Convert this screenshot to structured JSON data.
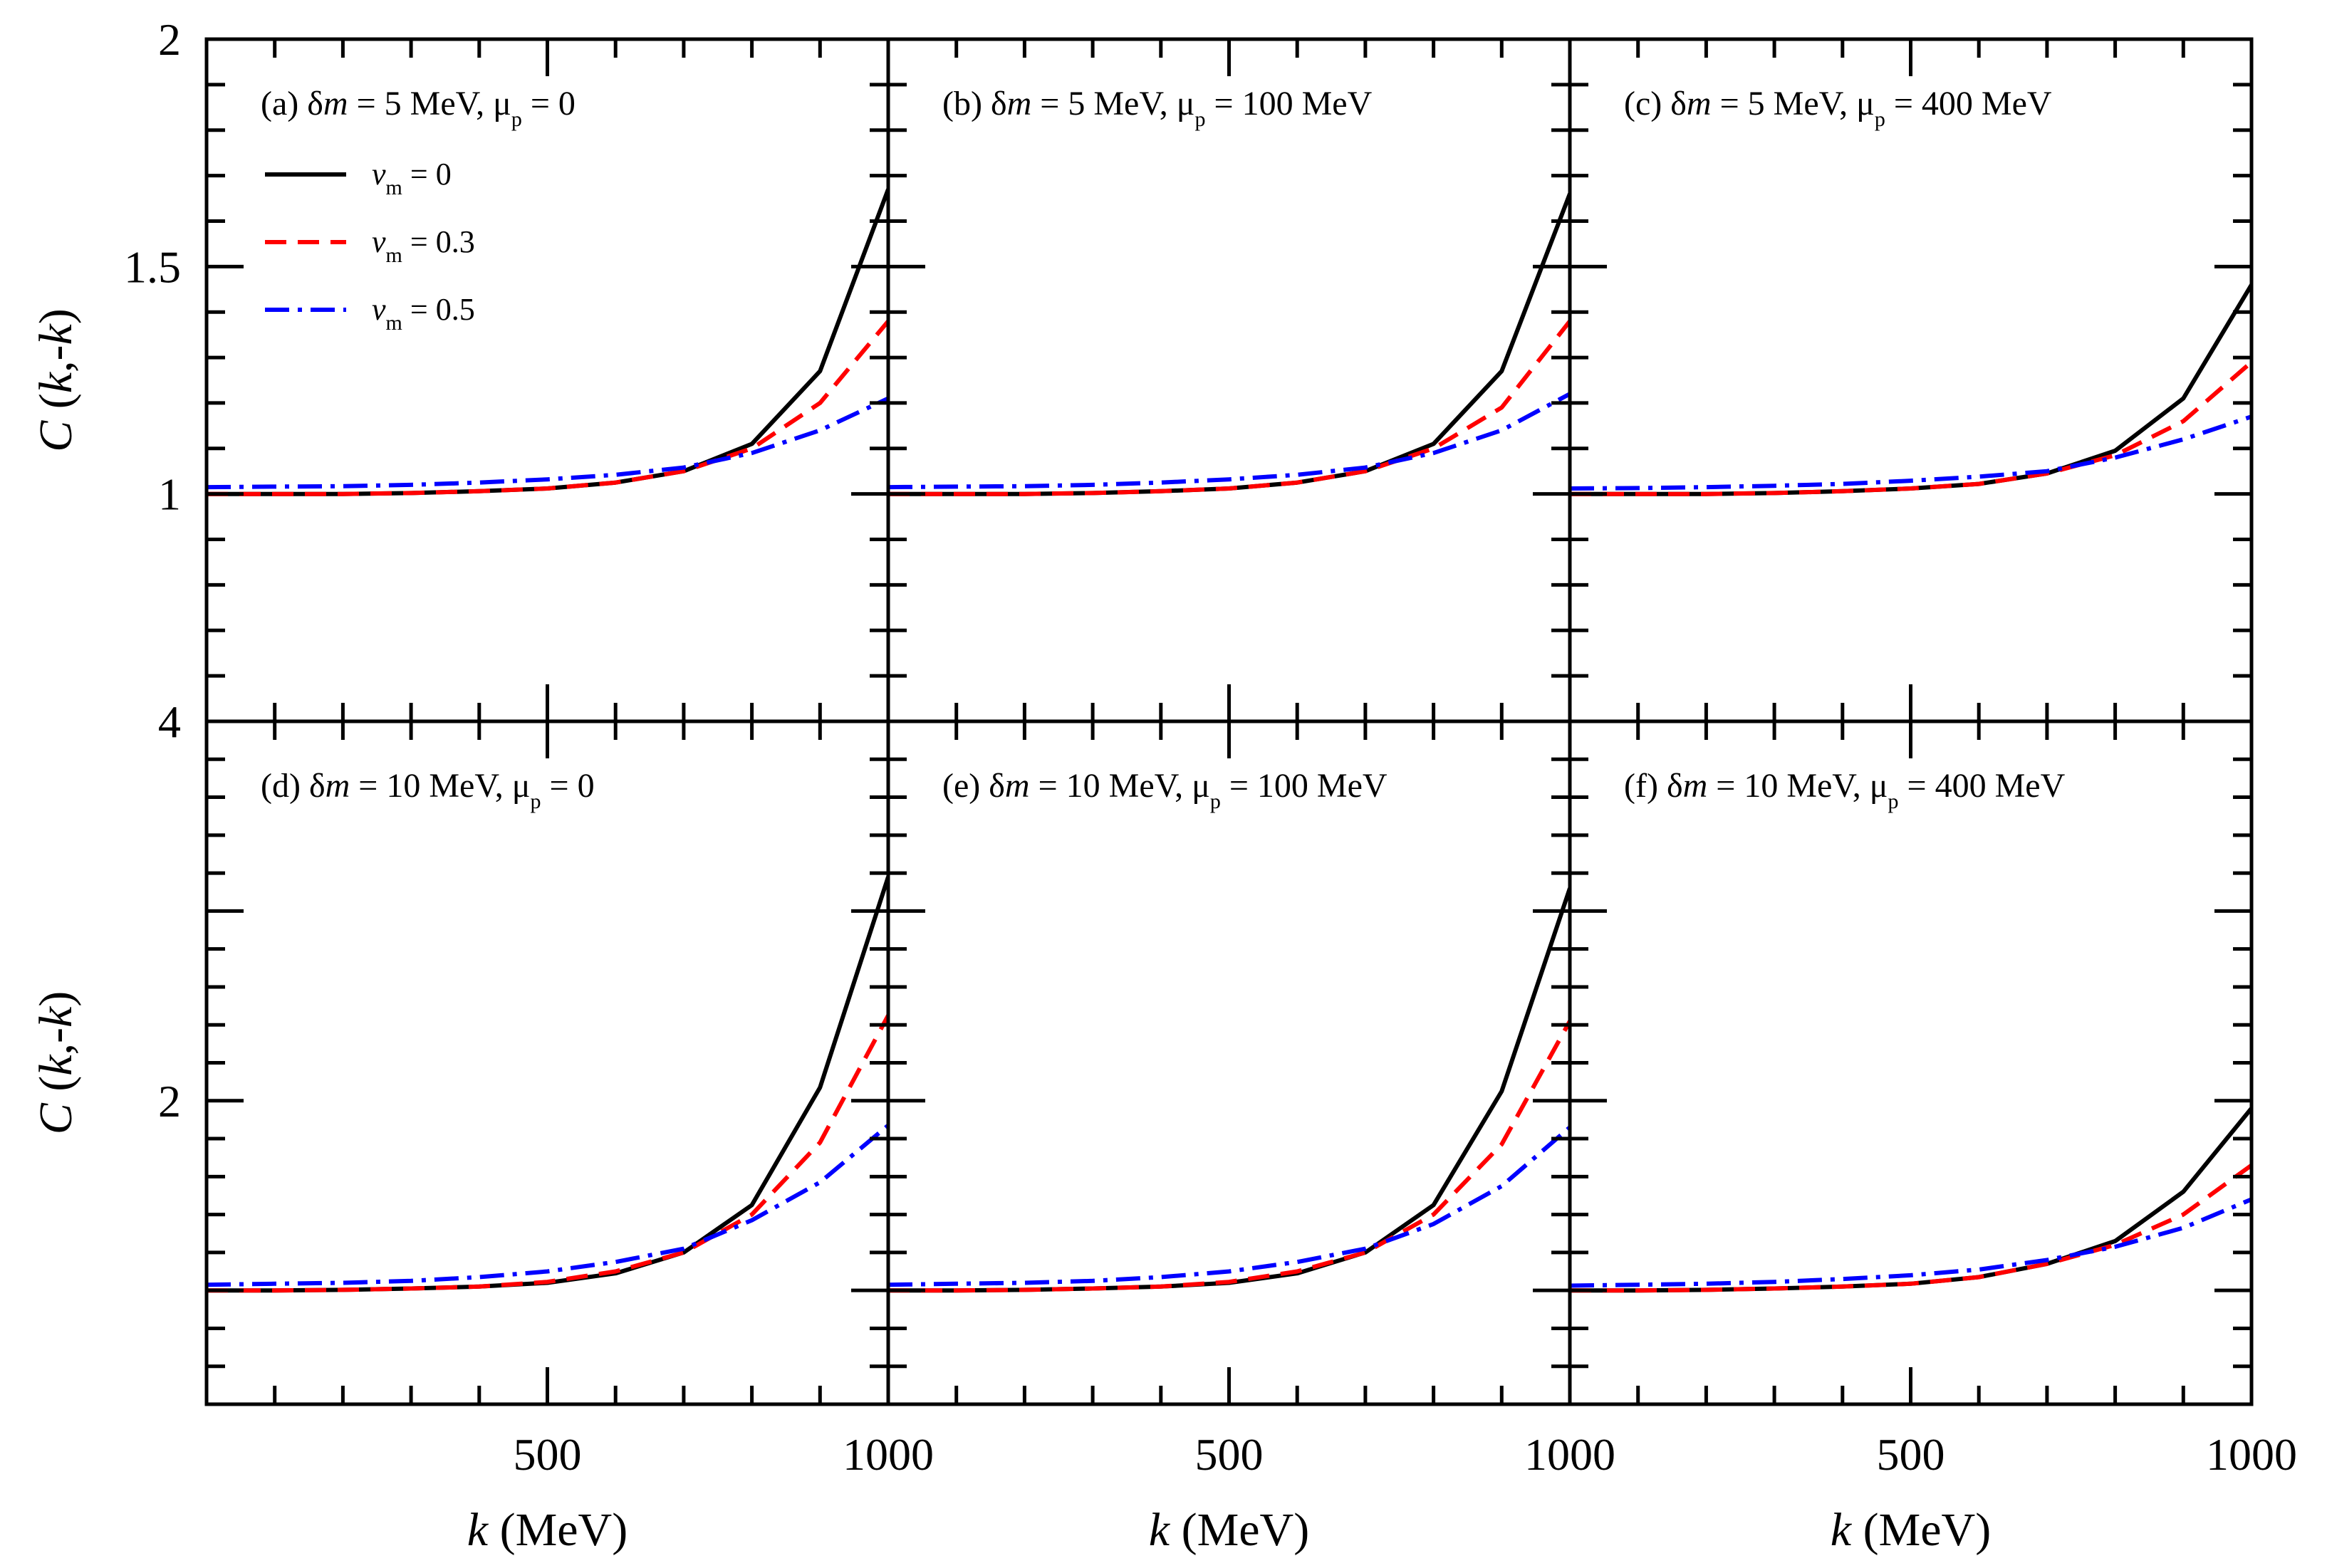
{
  "figure": {
    "ylabel_top": "C (k,-k)",
    "ylabel_bottom": "C (k,-k)",
    "xlabel": "k (MeV)",
    "legend": [
      {
        "var": "v",
        "sub": "m",
        "rest": " = 0",
        "color": "#000000",
        "dash": "solid"
      },
      {
        "var": "v",
        "sub": "m",
        "rest": " = 0.3",
        "color": "#ff0000",
        "dash": "dashed"
      },
      {
        "var": "v",
        "sub": "m",
        "rest": " = 0.5",
        "color": "#0000ff",
        "dash": "dashdot"
      }
    ],
    "top_row_yticks": [
      {
        "value": 1,
        "label": "1"
      },
      {
        "value": 1.5,
        "label": "1.5"
      },
      {
        "value": 2,
        "label": "2"
      }
    ],
    "top_row_extra_label": "4",
    "bottom_row_yticks": [
      {
        "value": 2,
        "label": "2"
      },
      {
        "value": 4,
        "label": "4"
      }
    ],
    "xticks": [
      {
        "value": 500,
        "label": "500"
      },
      {
        "value": 1000,
        "label": "1000"
      }
    ]
  },
  "chart_data": [
    {
      "type": "line",
      "panel": "a",
      "label": "(a) δm = 5 MeV, μp = 0",
      "title_parts": [
        "(a) ",
        "δ",
        "m",
        " = 5 MeV, ",
        "μ",
        "p",
        " = 0"
      ],
      "xlim": [
        0,
        1000
      ],
      "ylim": [
        0.5,
        2
      ],
      "x": [
        0,
        100,
        200,
        300,
        400,
        500,
        600,
        700,
        800,
        900,
        1000
      ],
      "series": [
        {
          "name": "vm = 0",
          "values": [
            1.0,
            1.0,
            1.0,
            1.002,
            1.006,
            1.012,
            1.025,
            1.05,
            1.11,
            1.27,
            1.67
          ]
        },
        {
          "name": "vm = 0.3",
          "values": [
            1.0,
            1.0,
            1.0,
            1.002,
            1.006,
            1.012,
            1.025,
            1.05,
            1.1,
            1.2,
            1.38
          ]
        },
        {
          "name": "vm = 0.5",
          "values": [
            1.015,
            1.016,
            1.017,
            1.02,
            1.025,
            1.032,
            1.042,
            1.058,
            1.09,
            1.14,
            1.21
          ]
        }
      ]
    },
    {
      "type": "line",
      "panel": "b",
      "label": "(b) δm = 5 MeV, μp = 100 MeV",
      "title_parts": [
        "(b) ",
        "δ",
        "m",
        " = 5 MeV, ",
        "μ",
        "p",
        " = 100 MeV"
      ],
      "xlim": [
        0,
        1000
      ],
      "ylim": [
        0.5,
        2
      ],
      "x": [
        0,
        100,
        200,
        300,
        400,
        500,
        600,
        700,
        800,
        900,
        1000
      ],
      "series": [
        {
          "name": "vm = 0",
          "values": [
            1.0,
            1.0,
            1.0,
            1.002,
            1.006,
            1.012,
            1.025,
            1.05,
            1.11,
            1.27,
            1.66
          ]
        },
        {
          "name": "vm = 0.3",
          "values": [
            1.0,
            1.0,
            1.0,
            1.002,
            1.006,
            1.012,
            1.025,
            1.05,
            1.1,
            1.19,
            1.38
          ]
        },
        {
          "name": "vm = 0.5",
          "values": [
            1.015,
            1.016,
            1.017,
            1.02,
            1.025,
            1.032,
            1.042,
            1.058,
            1.09,
            1.14,
            1.22
          ]
        }
      ]
    },
    {
      "type": "line",
      "panel": "c",
      "label": "(c) δm = 5 MeV, μp = 400 MeV",
      "title_parts": [
        "(c) ",
        "δ",
        "m",
        " = 5 MeV, ",
        "μ",
        "p",
        " = 400 MeV"
      ],
      "xlim": [
        0,
        1000
      ],
      "ylim": [
        0.5,
        2
      ],
      "x": [
        0,
        100,
        200,
        300,
        400,
        500,
        600,
        700,
        800,
        900,
        1000
      ],
      "series": [
        {
          "name": "vm = 0",
          "values": [
            1.0,
            1.0,
            1.0,
            1.002,
            1.006,
            1.012,
            1.022,
            1.045,
            1.095,
            1.21,
            1.46
          ]
        },
        {
          "name": "vm = 0.3",
          "values": [
            1.0,
            1.0,
            1.0,
            1.002,
            1.006,
            1.012,
            1.022,
            1.045,
            1.085,
            1.16,
            1.29
          ]
        },
        {
          "name": "vm = 0.5",
          "values": [
            1.012,
            1.013,
            1.015,
            1.018,
            1.022,
            1.029,
            1.038,
            1.05,
            1.08,
            1.12,
            1.17
          ]
        }
      ]
    },
    {
      "type": "line",
      "panel": "d",
      "label": "(d) δm = 10 MeV, μp = 0",
      "title_parts": [
        "(d) ",
        "δ",
        "m",
        " = 10 MeV, ",
        "μ",
        "p",
        " = 0"
      ],
      "xlim": [
        0,
        1000
      ],
      "ylim": [
        0.4,
        4
      ],
      "x": [
        0,
        100,
        200,
        300,
        400,
        500,
        600,
        700,
        800,
        900,
        1000
      ],
      "series": [
        {
          "name": "vm = 0",
          "values": [
            1.0,
            1.0,
            1.003,
            1.01,
            1.02,
            1.04,
            1.09,
            1.2,
            1.45,
            2.07,
            3.18
          ]
        },
        {
          "name": "vm = 0.3",
          "values": [
            1.0,
            1.0,
            1.003,
            1.01,
            1.02,
            1.045,
            1.1,
            1.2,
            1.4,
            1.78,
            2.45
          ]
        },
        {
          "name": "vm = 0.5",
          "values": [
            1.03,
            1.035,
            1.04,
            1.05,
            1.07,
            1.1,
            1.15,
            1.22,
            1.37,
            1.57,
            1.87
          ]
        }
      ]
    },
    {
      "type": "line",
      "panel": "e",
      "label": "(e) δm = 10 MeV, μp = 100 MeV",
      "title_parts": [
        "(e) ",
        "δ",
        "m",
        " = 10 MeV, ",
        "μ",
        "p",
        " = 100 MeV"
      ],
      "xlim": [
        0,
        1000
      ],
      "ylim": [
        0.4,
        4
      ],
      "x": [
        0,
        100,
        200,
        300,
        400,
        500,
        600,
        700,
        800,
        900,
        1000
      ],
      "series": [
        {
          "name": "vm = 0",
          "values": [
            1.0,
            1.0,
            1.003,
            1.01,
            1.02,
            1.04,
            1.09,
            1.2,
            1.45,
            2.05,
            3.12
          ]
        },
        {
          "name": "vm = 0.3",
          "values": [
            1.0,
            1.0,
            1.003,
            1.01,
            1.02,
            1.045,
            1.1,
            1.2,
            1.4,
            1.77,
            2.42
          ]
        },
        {
          "name": "vm = 0.5",
          "values": [
            1.03,
            1.035,
            1.04,
            1.05,
            1.07,
            1.1,
            1.15,
            1.22,
            1.35,
            1.55,
            1.86
          ]
        }
      ]
    },
    {
      "type": "line",
      "panel": "f",
      "label": "(f) δm = 10 MeV, μp = 400 MeV",
      "title_parts": [
        "(f) ",
        "δ",
        "m",
        " = 10 MeV, ",
        "μ",
        "p",
        " = 400 MeV"
      ],
      "xlim": [
        0,
        1000
      ],
      "ylim": [
        0.4,
        4
      ],
      "x": [
        0,
        100,
        200,
        300,
        400,
        500,
        600,
        700,
        800,
        900,
        1000
      ],
      "series": [
        {
          "name": "vm = 0",
          "values": [
            1.0,
            1.0,
            1.003,
            1.01,
            1.02,
            1.035,
            1.07,
            1.14,
            1.26,
            1.52,
            1.96
          ]
        },
        {
          "name": "vm = 0.3",
          "values": [
            1.0,
            1.0,
            1.003,
            1.01,
            1.02,
            1.035,
            1.07,
            1.14,
            1.24,
            1.4,
            1.66
          ]
        },
        {
          "name": "vm = 0.5",
          "values": [
            1.025,
            1.03,
            1.035,
            1.045,
            1.06,
            1.08,
            1.11,
            1.16,
            1.23,
            1.33,
            1.48
          ]
        }
      ]
    }
  ]
}
